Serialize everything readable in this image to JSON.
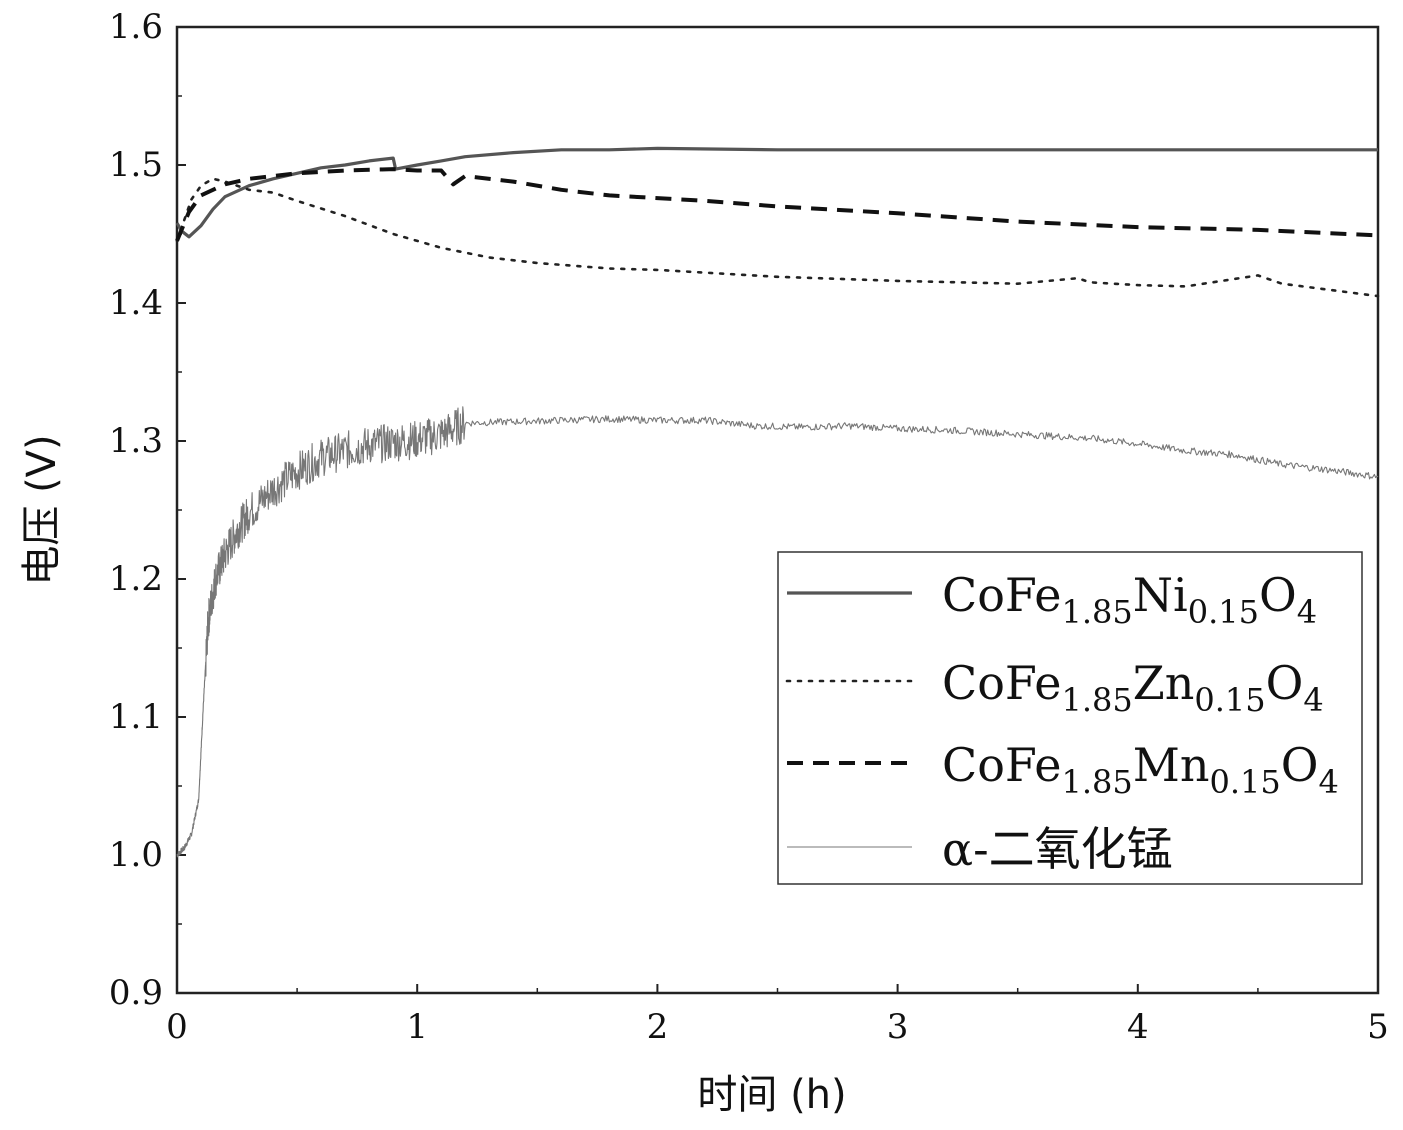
{
  "chart_data": {
    "type": "line",
    "xlabel": "时间 (h)",
    "ylabel": "电压 (V)",
    "xlim": [
      0,
      5
    ],
    "ylim": [
      0.9,
      1.6
    ],
    "x_ticks": [
      "0",
      "1",
      "2",
      "3",
      "4",
      "5"
    ],
    "y_ticks": [
      "0.9",
      "1.0",
      "1.1",
      "1.2",
      "1.3",
      "1.4",
      "1.5",
      "1.6"
    ],
    "grid": false,
    "legend_position": "bottom-right",
    "series": [
      {
        "name": "CoFe1.85Ni0.15O4",
        "name_parts": {
          "base1": "CoFe",
          "sub1": "1.85",
          "base2": "Ni",
          "sub2": "0.15",
          "base3": "O",
          "sub3": "4"
        },
        "style": "solid",
        "color": "#555555",
        "x": [
          0,
          0.02,
          0.05,
          0.1,
          0.15,
          0.2,
          0.3,
          0.4,
          0.5,
          0.6,
          0.7,
          0.8,
          0.9,
          0.91,
          1.0,
          1.1,
          1.2,
          1.4,
          1.6,
          1.8,
          2.0,
          2.5,
          3.0,
          3.5,
          4.0,
          4.5,
          5.0
        ],
        "y": [
          1.458,
          1.452,
          1.448,
          1.456,
          1.468,
          1.477,
          1.485,
          1.49,
          1.494,
          1.498,
          1.5,
          1.503,
          1.505,
          1.497,
          1.5,
          1.503,
          1.506,
          1.509,
          1.511,
          1.511,
          1.512,
          1.511,
          1.511,
          1.511,
          1.511,
          1.511,
          1.511
        ]
      },
      {
        "name": "CoFe1.85Zn0.15O4",
        "name_parts": {
          "base1": "CoFe",
          "sub1": "1.85",
          "base2": "Zn",
          "sub2": "0.15",
          "base3": "O",
          "sub3": "4"
        },
        "style": "dotted",
        "color": "#222222",
        "x": [
          0,
          0.03,
          0.06,
          0.1,
          0.15,
          0.2,
          0.3,
          0.4,
          0.5,
          0.7,
          0.9,
          1.1,
          1.3,
          1.5,
          1.8,
          2.0,
          2.5,
          3.0,
          3.5,
          3.75,
          3.8,
          4.0,
          4.2,
          4.5,
          4.6,
          5.0
        ],
        "y": [
          1.445,
          1.46,
          1.475,
          1.485,
          1.49,
          1.488,
          1.482,
          1.48,
          1.474,
          1.463,
          1.45,
          1.44,
          1.433,
          1.429,
          1.425,
          1.424,
          1.419,
          1.416,
          1.414,
          1.418,
          1.415,
          1.413,
          1.412,
          1.42,
          1.414,
          1.405
        ]
      },
      {
        "name": "CoFe1.85Mn0.15O4",
        "name_parts": {
          "base1": "CoFe",
          "sub1": "1.85",
          "base2": "Mn",
          "sub2": "0.15",
          "base3": "O",
          "sub3": "4"
        },
        "style": "dashed",
        "color": "#111111",
        "x": [
          0,
          0.05,
          0.1,
          0.15,
          0.2,
          0.3,
          0.5,
          0.7,
          0.9,
          1.0,
          1.1,
          1.15,
          1.2,
          1.4,
          1.6,
          1.8,
          2.0,
          2.2,
          2.5,
          3.0,
          3.5,
          4.0,
          4.5,
          5.0
        ],
        "y": [
          1.445,
          1.466,
          1.478,
          1.482,
          1.486,
          1.49,
          1.494,
          1.496,
          1.497,
          1.496,
          1.496,
          1.486,
          1.492,
          1.488,
          1.482,
          1.478,
          1.476,
          1.474,
          1.47,
          1.465,
          1.459,
          1.455,
          1.453,
          1.449
        ]
      },
      {
        "name": "α-二氧化锰",
        "name_parts": {
          "base1": "α-二氧化锰",
          "sub1": "",
          "base2": "",
          "sub2": "",
          "base3": "",
          "sub3": ""
        },
        "style": "solid-thin-noisy",
        "color": "#777777",
        "x": [
          0,
          0.03,
          0.06,
          0.09,
          0.11,
          0.13,
          0.16,
          0.2,
          0.25,
          0.3,
          0.4,
          0.5,
          0.6,
          0.7,
          0.8,
          0.9,
          1.0,
          1.1,
          1.2,
          1.4,
          1.6,
          1.8,
          2.0,
          2.2,
          2.4,
          2.6,
          2.8,
          3.0,
          3.2,
          3.4,
          3.6,
          3.8,
          4.0,
          4.2,
          4.4,
          4.6,
          4.8,
          5.0
        ],
        "y": [
          1.0,
          1.005,
          1.015,
          1.04,
          1.11,
          1.17,
          1.2,
          1.218,
          1.235,
          1.248,
          1.265,
          1.278,
          1.288,
          1.293,
          1.297,
          1.299,
          1.301,
          1.305,
          1.313,
          1.314,
          1.315,
          1.316,
          1.315,
          1.315,
          1.311,
          1.31,
          1.311,
          1.309,
          1.308,
          1.306,
          1.304,
          1.302,
          1.298,
          1.293,
          1.29,
          1.283,
          1.279,
          1.274
        ]
      }
    ]
  }
}
